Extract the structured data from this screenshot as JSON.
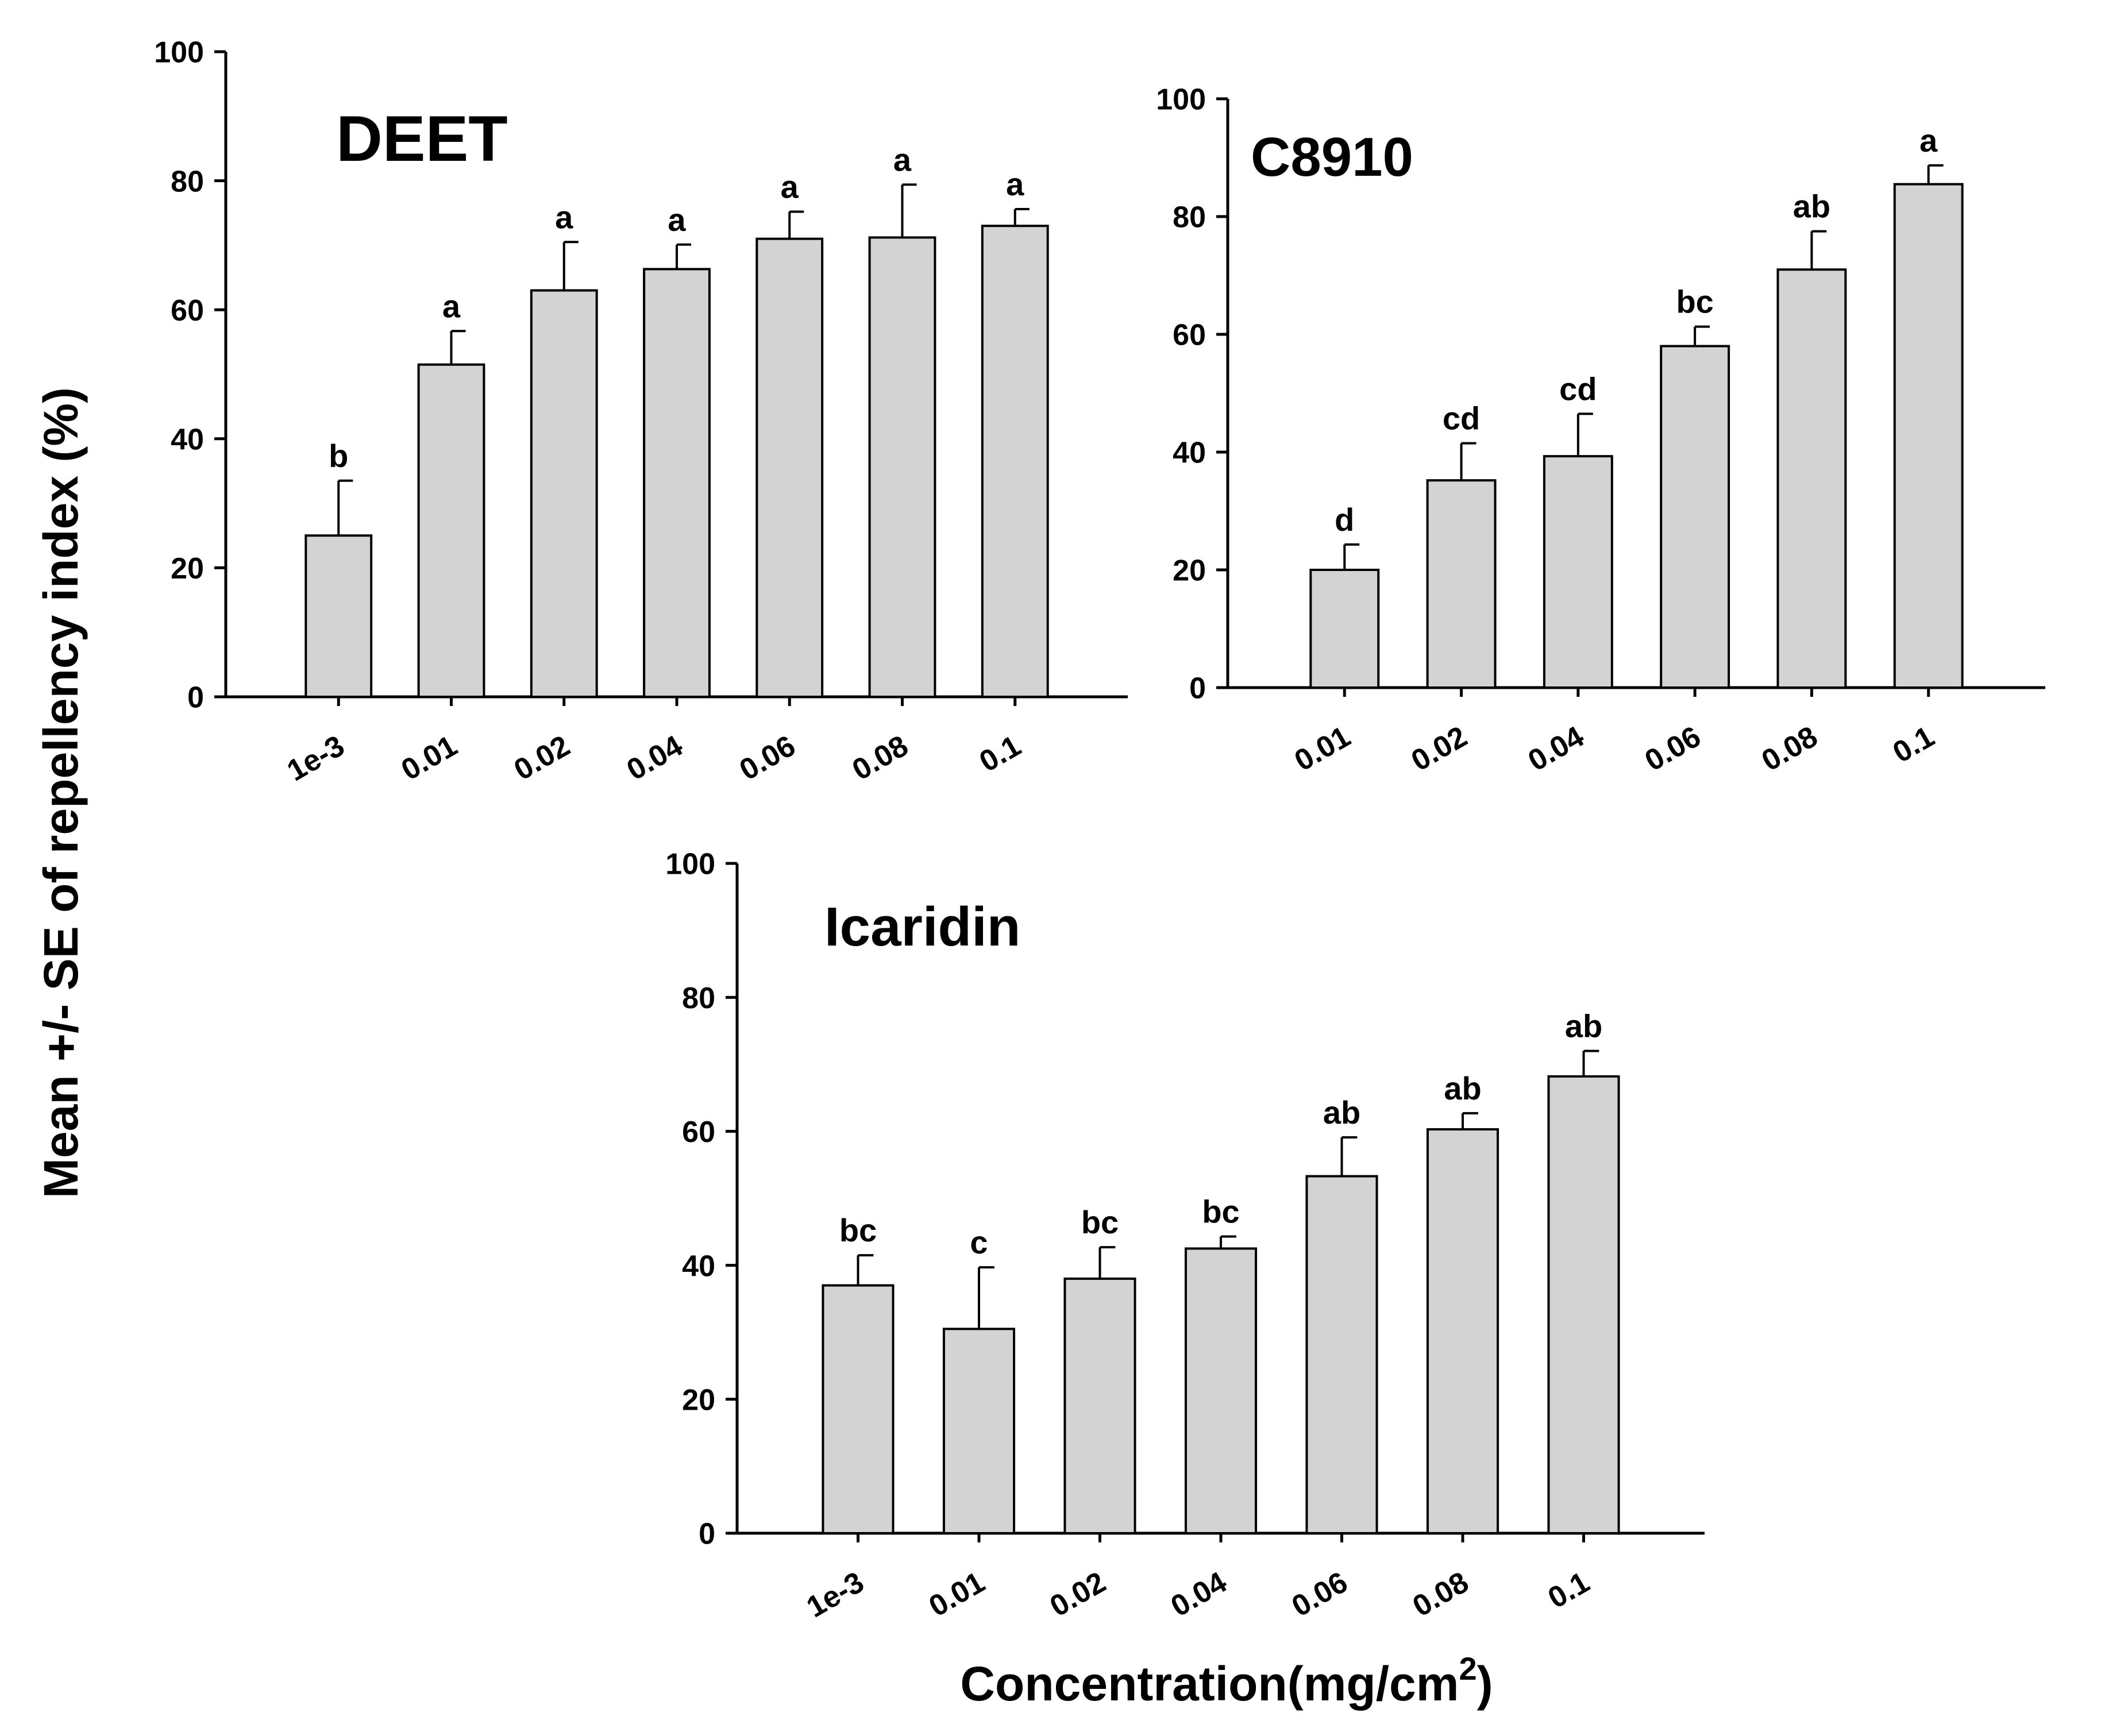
{
  "colors": {
    "bar_fill": "#d3d3d3",
    "stroke": "#000000",
    "background": "#ffffff"
  },
  "figure": {
    "ylabel": "Mean +/- SE of repellency index (%)",
    "xlabel": "Concentration(mg/cm",
    "xlabel_superscript": "2",
    "xlabel_close": ")"
  },
  "chart_data": [
    {
      "type": "bar",
      "title": "DEET",
      "categories": [
        "1e-3",
        "0.01",
        "0.02",
        "0.04",
        "0.06",
        "0.08",
        "0.1"
      ],
      "values": [
        25,
        51.5,
        63,
        66.3,
        71,
        71.2,
        73
      ],
      "errors": [
        8.5,
        5.2,
        7.5,
        3.8,
        4.2,
        8.2,
        2.6
      ],
      "letters": [
        "b",
        "a",
        "a",
        "a",
        "a",
        "a",
        "a"
      ],
      "ylim": [
        0,
        100
      ],
      "yticks": [
        0,
        20,
        40,
        60,
        80,
        100
      ],
      "xlabel": "",
      "ylabel": ""
    },
    {
      "type": "bar",
      "title": "C8910",
      "categories": [
        "0.01",
        "0.02",
        "0.04",
        "0.06",
        "0.08",
        "0.1"
      ],
      "values": [
        20,
        35.2,
        39.3,
        58,
        71,
        85.5
      ],
      "errors": [
        4.3,
        6.3,
        7.2,
        3.3,
        6.5,
        3.2
      ],
      "letters": [
        "d",
        "cd",
        "cd",
        "bc",
        "ab",
        "a"
      ],
      "ylim": [
        0,
        100
      ],
      "yticks": [
        0,
        20,
        40,
        60,
        80,
        100
      ],
      "xlabel": "",
      "ylabel": ""
    },
    {
      "type": "bar",
      "title": "Icaridin",
      "categories": [
        "1e-3",
        "0.01",
        "0.02",
        "0.04",
        "0.06",
        "0.08",
        "0.1"
      ],
      "values": [
        37,
        30.5,
        38,
        42.5,
        53.3,
        60.3,
        68.2
      ],
      "errors": [
        4.5,
        9.2,
        4.7,
        1.8,
        5.8,
        2.4,
        3.8
      ],
      "letters": [
        "bc",
        "c",
        "bc",
        "bc",
        "ab",
        "ab",
        "ab"
      ],
      "ylim": [
        0,
        100
      ],
      "yticks": [
        0,
        20,
        40,
        60,
        80,
        100
      ],
      "xlabel": "",
      "ylabel": ""
    }
  ]
}
